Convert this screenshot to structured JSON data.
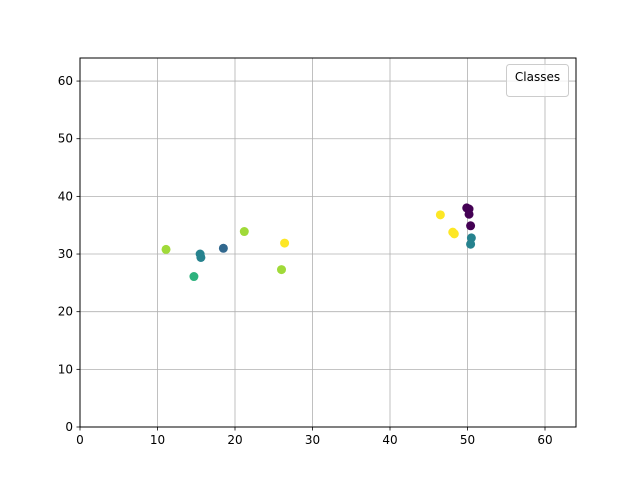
{
  "chart_data": {
    "type": "scatter",
    "title": "",
    "xlabel": "",
    "ylabel": "",
    "xlim": [
      0,
      64
    ],
    "ylim": [
      0,
      64
    ],
    "x_ticks": [
      0,
      10,
      20,
      30,
      40,
      50,
      60
    ],
    "y_ticks": [
      0,
      10,
      20,
      30,
      40,
      50,
      60
    ],
    "grid": true,
    "legend": {
      "title": "Classes",
      "placement": "top-right"
    },
    "points": [
      {
        "x": 11.1,
        "y": 30.8,
        "color": "#a0da39"
      },
      {
        "x": 14.7,
        "y": 26.1,
        "color": "#2db27d"
      },
      {
        "x": 15.5,
        "y": 30.0,
        "color": "#26828e"
      },
      {
        "x": 15.6,
        "y": 29.4,
        "color": "#26828e"
      },
      {
        "x": 18.5,
        "y": 31.0,
        "color": "#31688e"
      },
      {
        "x": 21.2,
        "y": 33.9,
        "color": "#a0da39"
      },
      {
        "x": 26.0,
        "y": 27.3,
        "color": "#a0da39"
      },
      {
        "x": 26.4,
        "y": 31.9,
        "color": "#fde725"
      },
      {
        "x": 46.5,
        "y": 36.8,
        "color": "#fde725"
      },
      {
        "x": 48.1,
        "y": 33.8,
        "color": "#fde725"
      },
      {
        "x": 48.3,
        "y": 33.5,
        "color": "#fde725"
      },
      {
        "x": 49.9,
        "y": 38.0,
        "color": "#440154"
      },
      {
        "x": 50.2,
        "y": 37.8,
        "color": "#440154"
      },
      {
        "x": 50.2,
        "y": 36.9,
        "color": "#440154"
      },
      {
        "x": 50.4,
        "y": 34.9,
        "color": "#440154"
      },
      {
        "x": 50.5,
        "y": 32.8,
        "color": "#26828e"
      },
      {
        "x": 50.4,
        "y": 31.7,
        "color": "#26828e"
      }
    ]
  }
}
